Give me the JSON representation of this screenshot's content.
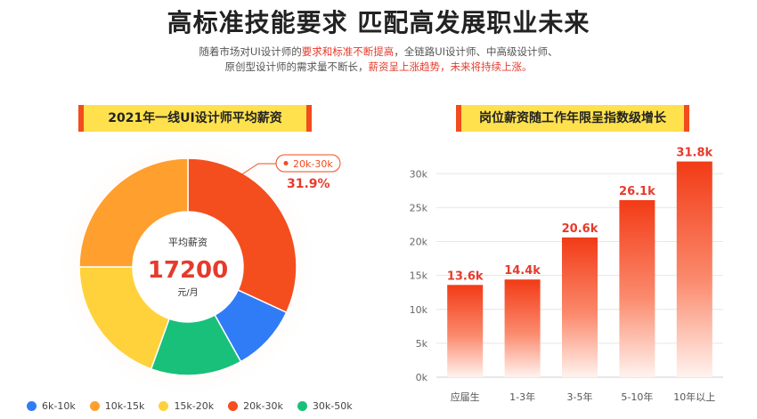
{
  "header": {
    "title": "高标准技能要求 匹配高发展职业未来",
    "line1_a": "随着市场对UI设计师的",
    "line1_b": "要求和标准不断提高",
    "line1_c": "，全链路UI设计师、中高级设计师、",
    "line2_a": "原创型设计师的需求量不断长，",
    "line2_b": "薪资呈上涨趋势，未来将持续上涨。"
  },
  "colors": {
    "blue": "#2f7cf6",
    "orange": "#ff9f2e",
    "yellow": "#ffd23c",
    "red": "#f44e1e",
    "green": "#19c07a",
    "accent": "#e53b2c"
  },
  "chart_data": [
    {
      "type": "pie",
      "title": "2021年一线UI设计师平均薪资",
      "center_label": "平均薪资",
      "center_value": "17200",
      "center_unit": "元/月",
      "callout_label": "20k-30k",
      "callout_value": "31.9%",
      "slices": [
        {
          "name": "6k-10k",
          "value": 10.0
        },
        {
          "name": "10k-15k",
          "value": 25.0
        },
        {
          "name": "15k-20k",
          "value": 19.5
        },
        {
          "name": "20k-30k",
          "value": 31.9
        },
        {
          "name": "30k-50k",
          "value": 13.6
        }
      ],
      "legend_position": "bottom"
    },
    {
      "type": "bar",
      "title": "岗位薪资随工作年限呈指数级增长",
      "categories": [
        "应届生",
        "1-3年",
        "3-5年",
        "5-10年",
        "10年以上"
      ],
      "values": [
        13.6,
        14.4,
        20.6,
        26.1,
        31.8
      ],
      "value_labels": [
        "13.6k",
        "14.4k",
        "20.6k",
        "26.1k",
        "31.8k"
      ],
      "yticks": [
        0,
        5,
        10,
        15,
        20,
        25,
        30
      ],
      "ytick_labels": [
        "0k",
        "5k",
        "10k",
        "15k",
        "20k",
        "25k",
        "30k"
      ],
      "ylim": [
        0,
        32
      ],
      "grid": true
    }
  ]
}
